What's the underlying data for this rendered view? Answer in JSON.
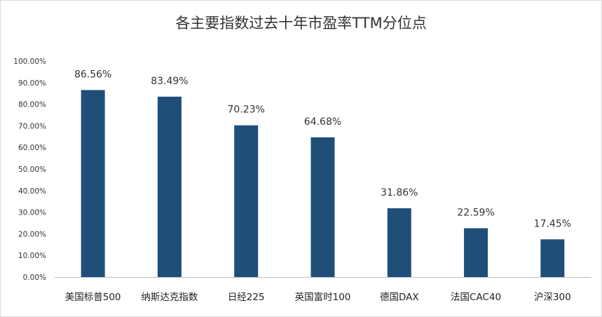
{
  "chart_data": {
    "type": "bar",
    "title": "各主要指数过去十年市盈率TTM分位点",
    "categories": [
      "美国标普500",
      "纳斯达克指数",
      "日经225",
      "英国富时100",
      "德国DAX",
      "法国CAC40",
      "沪深300"
    ],
    "values": [
      86.56,
      83.49,
      70.23,
      64.68,
      31.86,
      22.59,
      17.45
    ],
    "data_labels": [
      "86.56%",
      "83.49%",
      "70.23%",
      "64.68%",
      "31.86%",
      "22.59%",
      "17.45%"
    ],
    "y_ticks": [
      0,
      10,
      20,
      30,
      40,
      50,
      60,
      70,
      80,
      90,
      100
    ],
    "y_tick_labels": [
      "0.00%",
      "10.00%",
      "20.00%",
      "30.00%",
      "40.00%",
      "50.00%",
      "60.00%",
      "70.00%",
      "80.00%",
      "90.00%",
      "100.00%"
    ],
    "ylim": [
      0,
      100
    ],
    "grid": false,
    "legend": "none",
    "bar_color": "#1f4e79",
    "axis_color": "#bfbfbf"
  }
}
